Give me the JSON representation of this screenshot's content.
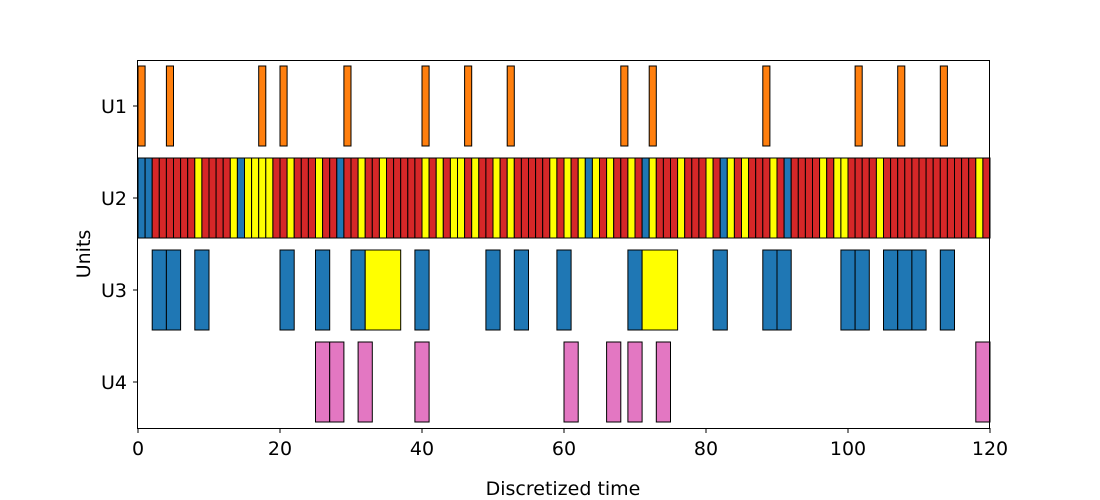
{
  "chart_data": {
    "type": "gantt",
    "title": "",
    "xlabel": "Discretized time",
    "ylabel": "Units",
    "xlim": [
      0,
      120
    ],
    "x_ticks": [
      0,
      20,
      40,
      60,
      80,
      100,
      120
    ],
    "x_tick_labels": [
      "0",
      "20",
      "40",
      "60",
      "80",
      "100",
      "120"
    ],
    "grid": false,
    "colors": {
      "orange": "#ff7f0e",
      "red": "#d62728",
      "yellow": "#ffff00",
      "blue": "#1f77b4",
      "pink": "#e377c2"
    },
    "units": [
      {
        "name": "U1",
        "tasks": [
          {
            "start": 0,
            "end": 1,
            "color": "orange"
          },
          {
            "start": 4,
            "end": 5,
            "color": "orange"
          },
          {
            "start": 17,
            "end": 18,
            "color": "orange"
          },
          {
            "start": 20,
            "end": 21,
            "color": "orange"
          },
          {
            "start": 29,
            "end": 30,
            "color": "orange"
          },
          {
            "start": 40,
            "end": 41,
            "color": "orange"
          },
          {
            "start": 46,
            "end": 47,
            "color": "orange"
          },
          {
            "start": 52,
            "end": 53,
            "color": "orange"
          },
          {
            "start": 68,
            "end": 69,
            "color": "orange"
          },
          {
            "start": 72,
            "end": 73,
            "color": "orange"
          },
          {
            "start": 88,
            "end": 89,
            "color": "orange"
          },
          {
            "start": 101,
            "end": 102,
            "color": "orange"
          },
          {
            "start": 107,
            "end": 108,
            "color": "orange"
          },
          {
            "start": 113,
            "end": 114,
            "color": "orange"
          }
        ]
      },
      {
        "name": "U2",
        "colors": "BBRRRRRRYRRRRYBYYYYRRYRRRYRRBRRYRRYRRRRRYRYRYYRYRRYRYRRRRRYRYRYBYRYRRYRBYRRRYRRRYRBYRYRRRYRBRRRRYRYYRRRRYRRRRRRRRRRRRRYR"
      },
      {
        "name": "U3",
        "tasks": [
          {
            "start": 2,
            "end": 4,
            "color": "blue"
          },
          {
            "start": 4,
            "end": 6,
            "color": "blue"
          },
          {
            "start": 8,
            "end": 10,
            "color": "blue"
          },
          {
            "start": 20,
            "end": 22,
            "color": "blue"
          },
          {
            "start": 25,
            "end": 27,
            "color": "blue"
          },
          {
            "start": 30,
            "end": 32,
            "color": "blue"
          },
          {
            "start": 32,
            "end": 37,
            "color": "yellow"
          },
          {
            "start": 39,
            "end": 41,
            "color": "blue"
          },
          {
            "start": 49,
            "end": 51,
            "color": "blue"
          },
          {
            "start": 53,
            "end": 55,
            "color": "blue"
          },
          {
            "start": 59,
            "end": 61,
            "color": "blue"
          },
          {
            "start": 69,
            "end": 71,
            "color": "blue"
          },
          {
            "start": 71,
            "end": 76,
            "color": "yellow"
          },
          {
            "start": 81,
            "end": 83,
            "color": "blue"
          },
          {
            "start": 88,
            "end": 90,
            "color": "blue"
          },
          {
            "start": 90,
            "end": 92,
            "color": "blue"
          },
          {
            "start": 99,
            "end": 101,
            "color": "blue"
          },
          {
            "start": 101,
            "end": 103,
            "color": "blue"
          },
          {
            "start": 105,
            "end": 107,
            "color": "blue"
          },
          {
            "start": 107,
            "end": 109,
            "color": "blue"
          },
          {
            "start": 109,
            "end": 111,
            "color": "blue"
          },
          {
            "start": 113,
            "end": 115,
            "color": "blue"
          }
        ]
      },
      {
        "name": "U4",
        "tasks": [
          {
            "start": 25,
            "end": 27,
            "color": "pink"
          },
          {
            "start": 27,
            "end": 29,
            "color": "pink"
          },
          {
            "start": 31,
            "end": 33,
            "color": "pink"
          },
          {
            "start": 39,
            "end": 41,
            "color": "pink"
          },
          {
            "start": 60,
            "end": 62,
            "color": "pink"
          },
          {
            "start": 66,
            "end": 68,
            "color": "pink"
          },
          {
            "start": 69,
            "end": 71,
            "color": "pink"
          },
          {
            "start": 73,
            "end": 75,
            "color": "pink"
          },
          {
            "start": 118,
            "end": 120,
            "color": "pink"
          }
        ]
      }
    ]
  }
}
